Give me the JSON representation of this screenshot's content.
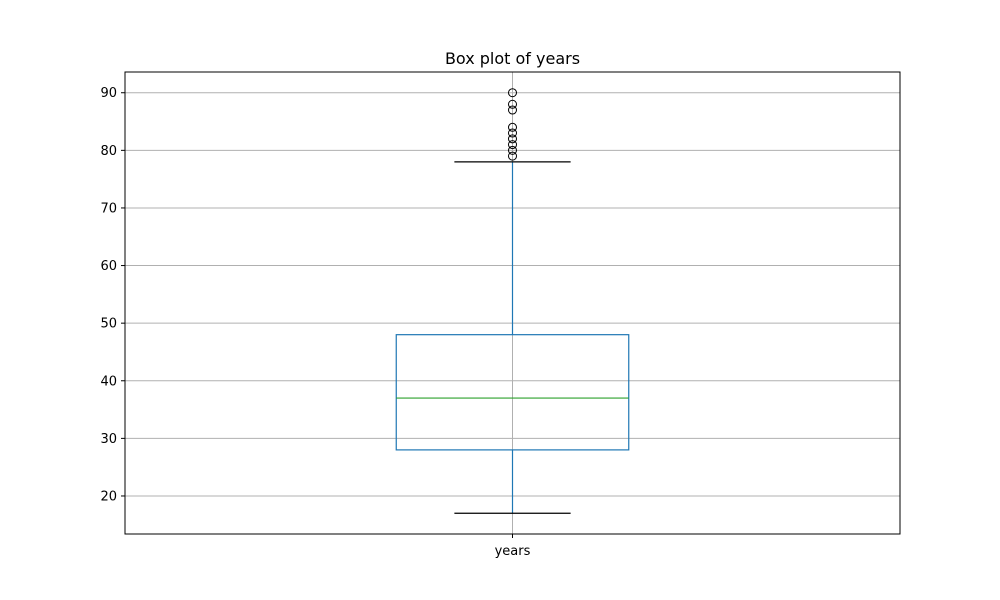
{
  "chart_data": {
    "type": "box",
    "title": "Box plot of years",
    "categories": [
      "years"
    ],
    "xlabel": "",
    "ylabel": "",
    "ylim": [
      13.4,
      93.6
    ],
    "yticks": [
      20,
      30,
      40,
      50,
      60,
      70,
      80,
      90
    ],
    "grid": true,
    "series": [
      {
        "category": "years",
        "whisker_low": 17,
        "q1": 28,
        "median": 37,
        "q3": 48,
        "whisker_high": 78,
        "outliers": [
          79,
          80,
          81,
          82,
          83,
          84,
          87,
          88,
          90
        ]
      }
    ],
    "colors": {
      "box": "#1f77b4",
      "median": "#2ca02c",
      "caps": "#000000",
      "grid": "#b0b0b0",
      "outlier_edge": "#000000"
    }
  }
}
